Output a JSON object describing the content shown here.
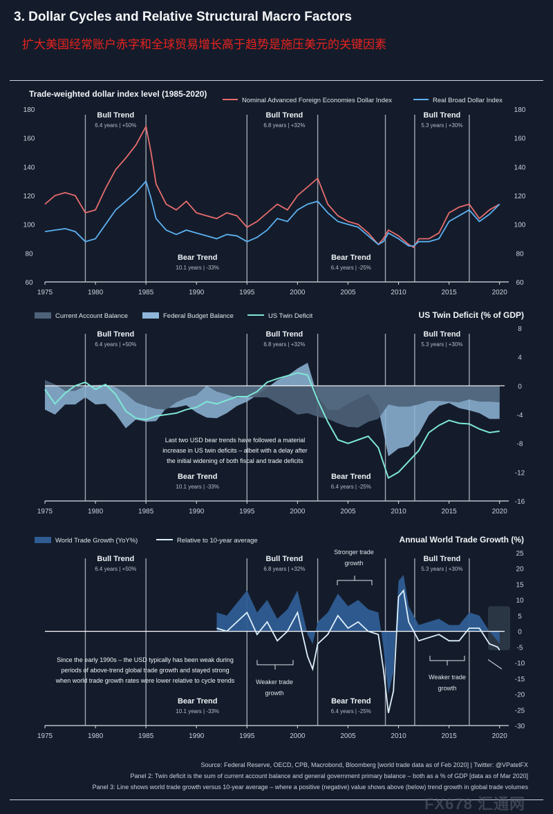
{
  "header": {
    "title": "3. Dollar Cycles and Relative Structural Macro Factors",
    "subtitle": "扩大美国经常账户赤字和全球贸易增长高于趋势是施压美元的关键因素"
  },
  "x_axis": {
    "ticks": [
      "1975",
      "1980",
      "1985",
      "1990",
      "1995",
      "2000",
      "2005",
      "2010",
      "2015",
      "2020"
    ],
    "range": [
      1975,
      2020.5
    ]
  },
  "cycle_lines": [
    1979,
    1985,
    1995,
    2002,
    2008.7,
    2011.6,
    2017
  ],
  "trend_labels": [
    {
      "kind": "Bull Trend",
      "detail": "6.4 years | +50%",
      "year": 1982
    },
    {
      "kind": "Bull Trend",
      "detail": "6.8 years | +32%",
      "year": 1998.7
    },
    {
      "kind": "Bull Trend",
      "detail": "5.3 years | +30%",
      "year": 2014.3
    },
    {
      "kind": "Bear Trend",
      "detail": "10.1 years | -33%",
      "year": 1990.1
    },
    {
      "kind": "Bear Trend",
      "detail": "6.4 years | -25%",
      "year": 2005.3
    }
  ],
  "chart_data": [
    {
      "type": "line",
      "title": "Trade-weighted dollar index level (1985-2020)",
      "ylim": [
        60,
        180
      ],
      "yticks": [
        "60",
        "80",
        "100",
        "120",
        "140",
        "160",
        "180"
      ],
      "series": [
        {
          "name": "Nominal Advanced Foreign Economies Dollar Index",
          "color": "#e96d6d",
          "x": [
            1975,
            1976,
            1977,
            1978,
            1979,
            1980,
            1981,
            1982,
            1983,
            1984,
            1985,
            1985.5,
            1986,
            1987,
            1988,
            1989,
            1990,
            1991,
            1992,
            1993,
            1994,
            1995,
            1996,
            1997,
            1998,
            1999,
            2000,
            2001,
            2002,
            2003,
            2004,
            2005,
            2006,
            2007,
            2008,
            2008.5,
            2009,
            2010,
            2011,
            2011.5,
            2012,
            2013,
            2014,
            2015,
            2016,
            2017,
            2018,
            2019,
            2020
          ],
          "values": [
            114,
            120,
            122,
            120,
            108,
            110,
            125,
            138,
            146,
            155,
            168,
            150,
            128,
            114,
            110,
            116,
            108,
            106,
            104,
            108,
            106,
            98,
            102,
            108,
            114,
            110,
            120,
            126,
            132,
            114,
            106,
            102,
            100,
            94,
            86,
            90,
            96,
            92,
            86,
            84,
            90,
            90,
            94,
            108,
            112,
            114,
            104,
            110,
            114
          ]
        },
        {
          "name": "Real Broad Dollar Index",
          "color": "#5db2f2",
          "x": [
            1975,
            1976,
            1977,
            1978,
            1979,
            1980,
            1981,
            1982,
            1983,
            1984,
            1985,
            1985.5,
            1986,
            1987,
            1988,
            1989,
            1990,
            1991,
            1992,
            1993,
            1994,
            1995,
            1996,
            1997,
            1998,
            1999,
            2000,
            2001,
            2002,
            2003,
            2004,
            2005,
            2006,
            2007,
            2008,
            2008.5,
            2009,
            2010,
            2011,
            2011.5,
            2012,
            2013,
            2014,
            2015,
            2016,
            2017,
            2018,
            2019,
            2020
          ],
          "values": [
            95,
            96,
            97,
            95,
            88,
            90,
            100,
            110,
            116,
            122,
            130,
            118,
            104,
            96,
            93,
            96,
            94,
            92,
            90,
            93,
            92,
            88,
            91,
            96,
            104,
            102,
            110,
            114,
            116,
            108,
            102,
            100,
            98,
            92,
            86,
            88,
            94,
            90,
            85,
            85,
            88,
            88,
            90,
            102,
            106,
            110,
            102,
            107,
            114
          ]
        }
      ]
    },
    {
      "type": "area",
      "title": "US Twin Deficit (% of GDP)",
      "ylim": [
        -16,
        8
      ],
      "yticks": [
        "8",
        "4",
        "0",
        "-4",
        "-8",
        "-12",
        "-16"
      ],
      "series": [
        {
          "name": "Current Account Balance",
          "color": "#4d6278",
          "x": [
            1975,
            1976,
            1977,
            1978,
            1979,
            1980,
            1981,
            1982,
            1983,
            1984,
            1985,
            1986,
            1987,
            1988,
            1989,
            1990,
            1991,
            1992,
            1993,
            1994,
            1995,
            1996,
            1997,
            1998,
            1999,
            2000,
            2001,
            2002,
            2003,
            2004,
            2005,
            2006,
            2007,
            2008,
            2009,
            2010,
            2011,
            2012,
            2013,
            2014,
            2015,
            2016,
            2017,
            2018,
            2019,
            2020
          ],
          "values": [
            0.8,
            0.2,
            -0.7,
            -0.7,
            0,
            0.1,
            0.2,
            -0.2,
            -1.1,
            -2.3,
            -2.8,
            -3.2,
            -3.3,
            -2.3,
            -1.7,
            -1.3,
            0,
            -0.8,
            -1.2,
            -1.7,
            -1.5,
            -1.6,
            -1.6,
            -2.4,
            -3.1,
            -4,
            -3.8,
            -4.3,
            -4.6,
            -5.2,
            -5.7,
            -5.8,
            -5,
            -4.6,
            -2.6,
            -2.9,
            -2.9,
            -2.6,
            -2.1,
            -2.1,
            -2.2,
            -2.3,
            -1.9,
            -2.2,
            -2.2,
            -2.3
          ]
        },
        {
          "name": "Federal Budget Balance",
          "color": "#8fb6d8",
          "x": [
            1975,
            1976,
            1977,
            1978,
            1979,
            1980,
            1981,
            1982,
            1983,
            1984,
            1985,
            1986,
            1987,
            1988,
            1989,
            1990,
            1991,
            1992,
            1993,
            1994,
            1995,
            1996,
            1997,
            1998,
            1999,
            2000,
            2001,
            2002,
            2003,
            2004,
            2005,
            2006,
            2007,
            2008,
            2009,
            2010,
            2011,
            2012,
            2013,
            2014,
            2015,
            2016,
            2017,
            2018,
            2019,
            2020
          ],
          "values": [
            -3.3,
            -4,
            -2.6,
            -2.6,
            -1.6,
            -2.6,
            -2.5,
            -3.9,
            -5.9,
            -4.7,
            -5,
            -4.9,
            -3.1,
            -3,
            -2.7,
            -3.7,
            -4.4,
            -4.5,
            -3.8,
            -2.8,
            -2.2,
            -1.3,
            -0.3,
            0.8,
            1.4,
            2.4,
            3.2,
            -1.5,
            -3.3,
            -3.4,
            -2.5,
            -1.8,
            -1.1,
            -3.1,
            -9.8,
            -8.7,
            -8.4,
            -6.7,
            -4.1,
            -2.8,
            -2.4,
            -3.1,
            -3.4,
            -3.8,
            -4.6,
            -4.6
          ]
        },
        {
          "name": "US Twin Deficit",
          "color": "#7fe8d6",
          "x": [
            1975,
            1976,
            1977,
            1978,
            1979,
            1980,
            1981,
            1982,
            1983,
            1984,
            1985,
            1986,
            1987,
            1988,
            1989,
            1990,
            1991,
            1992,
            1993,
            1994,
            1995,
            1996,
            1997,
            1998,
            1999,
            2000,
            2001,
            2002,
            2003,
            2004,
            2005,
            2006,
            2007,
            2008,
            2009,
            2010,
            2011,
            2012,
            2013,
            2014,
            2015,
            2016,
            2017,
            2018,
            2019,
            2020
          ],
          "values": [
            -0.5,
            -2.5,
            -1,
            0,
            0.5,
            -0.5,
            0.2,
            -1.2,
            -3.5,
            -4.5,
            -4.7,
            -4.2,
            -4,
            -3.8,
            -3.3,
            -3,
            -2.2,
            -2.5,
            -2,
            -1.5,
            -1.5,
            -0.8,
            0.5,
            1,
            1.4,
            1.8,
            1.5,
            -2,
            -5,
            -7.5,
            -8,
            -7.5,
            -7,
            -8.6,
            -12.8,
            -12,
            -10.5,
            -9,
            -6.5,
            -5.5,
            -4.8,
            -5.2,
            -5.3,
            -6,
            -6.5,
            -6.3
          ]
        }
      ],
      "annotation": [
        "Last two USD bear trends have followed a material",
        "increase in US twin deficits – albeit with a delay after",
        "the initial widening of both fiscal and trade deficits"
      ]
    },
    {
      "type": "area",
      "title": "Annual World Trade Growth (%)",
      "ylim": [
        -30,
        25
      ],
      "yticks": [
        "25",
        "20",
        "15",
        "10",
        "5",
        "0",
        "-5",
        "-10",
        "-15",
        "-20",
        "-25",
        "-30"
      ],
      "series": [
        {
          "name": "World Trade Growth (YoY%)",
          "color": "#2f5d93",
          "x": [
            1992,
            1993,
            1994,
            1995,
            1996,
            1997,
            1998,
            1999,
            2000,
            2001,
            2001.5,
            2002,
            2003,
            2004,
            2005,
            2006,
            2007,
            2008,
            2008.5,
            2009,
            2009.5,
            2010,
            2010.5,
            2011,
            2012,
            2013,
            2014,
            2015,
            2016,
            2017,
            2018,
            2019,
            2019.8,
            2020
          ],
          "values": [
            6,
            5,
            9,
            13,
            6,
            10,
            4,
            7,
            13,
            -1,
            -4,
            3,
            6,
            12,
            8,
            10,
            7,
            6,
            -5,
            -20,
            -13,
            16,
            18,
            8,
            2,
            3,
            4,
            2,
            2,
            6,
            5,
            0,
            -3,
            -4
          ]
        },
        {
          "name": "Relative to 10-year average",
          "color": "#dff1fb",
          "x": [
            1992,
            1993,
            1994,
            1995,
            1996,
            1997,
            1998,
            1999,
            2000,
            2001,
            2001.5,
            2002,
            2003,
            2004,
            2005,
            2006,
            2007,
            2008,
            2008.5,
            2009,
            2009.5,
            2010,
            2010.5,
            2011,
            2012,
            2013,
            2014,
            2015,
            2016,
            2017,
            2018,
            2019,
            2019.8,
            2020
          ],
          "values": [
            1,
            0,
            3,
            6,
            -1,
            3,
            -3,
            0,
            6,
            -8,
            -12,
            -4,
            -1,
            5,
            1,
            3,
            0,
            -1,
            -12,
            -26,
            -19,
            11,
            13,
            3,
            -3,
            -2,
            -1,
            -3,
            -3,
            1,
            1,
            -4,
            -5,
            -6
          ]
        }
      ],
      "annotations": {
        "stronger": [
          "Stronger trade",
          "growth"
        ],
        "weaker1": [
          "Weaker trade",
          "growth"
        ],
        "weaker2": [
          "Weaker trade",
          "growth"
        ],
        "note": [
          "Since the early 1990s – the USD typically has been weak during",
          "periods of above-trend global trade growth and stayed strong",
          "when world trade growth rates were lower relative to cycle trends"
        ]
      }
    }
  ],
  "footer": [
    "Source: Federal Reserve, OECD, CPB, Macrobond, Bloomberg [world trade data as of Feb 2020] | Twitter: @VPatelFX",
    "Panel 2: Twin deficit is the sum of current account balance and general government primary balance – both as a % of GDP [data as of Mar 2020]",
    "Panel 3: Line shows world trade growth versus 10-year average – where a positive (negative) value shows above (below) trend growth in global trade volumes"
  ],
  "watermark": "FX678 汇通网"
}
